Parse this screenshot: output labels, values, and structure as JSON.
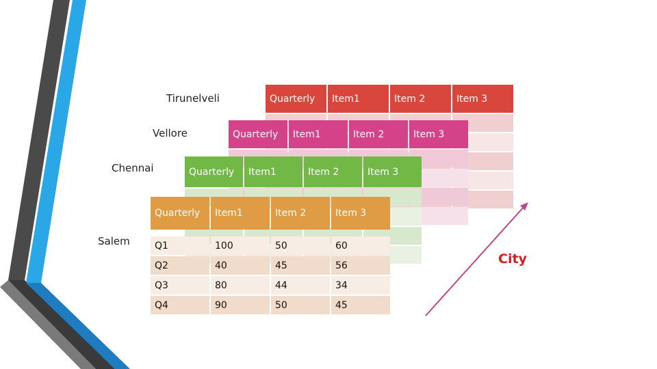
{
  "colors": {
    "tirunelveli": "#d9463b",
    "vellore": "#d4428a",
    "chennai": "#72b847",
    "salem": "#e09c44",
    "arrow": "#c0468a",
    "city_text": "#d02020"
  },
  "cities": {
    "tirunelveli": "Tirunelveli",
    "vellore": "Vellore",
    "chennai": "Chennai",
    "salem": "Salem"
  },
  "headers": [
    "Quarterly",
    "Item1",
    "Item 2",
    "Item 3"
  ],
  "axis_label": "City",
  "salem_table": {
    "rows": [
      [
        "Q1",
        "100",
        "50",
        "60"
      ],
      [
        "Q2",
        "40",
        "45",
        "56"
      ],
      [
        "Q3",
        "80",
        "44",
        "34"
      ],
      [
        "Q4",
        "90",
        "50",
        "45"
      ]
    ]
  }
}
